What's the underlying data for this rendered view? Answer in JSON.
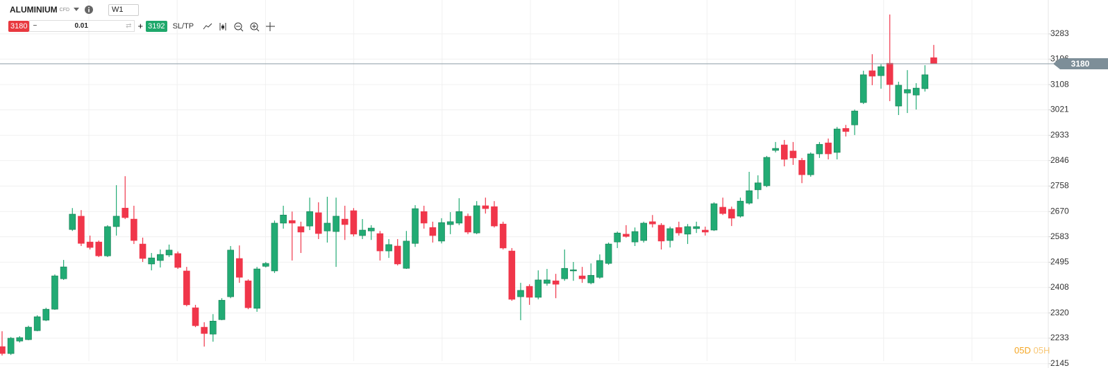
{
  "toolbar": {
    "symbol": "ALUMINIUM",
    "kind": "CFD",
    "timeframe": "W1",
    "sell": "3180",
    "quantity": "0.01",
    "buy": "3192",
    "sltp": "SL/TP"
  },
  "timer": {
    "days": "05D",
    "hours": "05H"
  },
  "chart_data": {
    "type": "candlestick",
    "last_price": 3180,
    "last_price_label": "3180",
    "ylim": [
      2154,
      3400
    ],
    "yticks": [
      3283,
      3196,
      3108,
      3021,
      2933,
      2846,
      2758,
      2670,
      2583,
      2495,
      2408,
      2320,
      2233,
      2145
    ],
    "grid": true,
    "up_color": "#22ab74",
    "down_color": "#f0364a",
    "series": [
      {
        "name": "ALUMINIUM",
        "open": [
          2204,
          2180,
          2223,
          2228,
          2259,
          2295,
          2333,
          2438,
          2608,
          2654,
          2565,
          2565,
          2517,
          2618,
          2682,
          2644,
          2558,
          2489,
          2501,
          2520,
          2525,
          2465,
          2338,
          2271,
          2247,
          2297,
          2376,
          2508,
          2431,
          2336,
          2481,
          2465,
          2630,
          2639,
          2618,
          2620,
          2666,
          2603,
          2601,
          2644,
          2673,
          2587,
          2603,
          2594,
          2534,
          2551,
          2474,
          2560,
          2670,
          2615,
          2568,
          2625,
          2630,
          2654,
          2596,
          2690,
          2687,
          2627,
          2534,
          2376,
          2412,
          2374,
          2422,
          2431,
          2438,
          2465,
          2448,
          2424,
          2443,
          2491,
          2565,
          2592,
          2565,
          2570,
          2635,
          2623,
          2570,
          2615,
          2592,
          2611,
          2606,
          2606,
          2685,
          2678,
          2654,
          2699,
          2745,
          2759,
          2881,
          2900,
          2879,
          2847,
          2797,
          2869,
          2907,
          2874,
          2957,
          2969,
          3046,
          3156,
          3139,
          3182,
          3034,
          3079,
          3072,
          3094,
          3201
        ],
        "high": [
          2257,
          2237,
          2240,
          2276,
          2312,
          2338,
          2453,
          2503,
          2682,
          2675,
          2587,
          2570,
          2623,
          2761,
          2792,
          2690,
          2580,
          2527,
          2539,
          2556,
          2532,
          2479,
          2348,
          2288,
          2316,
          2371,
          2551,
          2553,
          2436,
          2479,
          2496,
          2639,
          2690,
          2670,
          2635,
          2718,
          2702,
          2721,
          2718,
          2690,
          2682,
          2644,
          2623,
          2603,
          2575,
          2575,
          2603,
          2692,
          2690,
          2635,
          2647,
          2668,
          2716,
          2663,
          2706,
          2718,
          2706,
          2635,
          2544,
          2424,
          2419,
          2467,
          2472,
          2455,
          2539,
          2496,
          2479,
          2491,
          2522,
          2563,
          2601,
          2623,
          2615,
          2635,
          2658,
          2630,
          2618,
          2635,
          2627,
          2635,
          2618,
          2702,
          2718,
          2687,
          2718,
          2807,
          2795,
          2862,
          2910,
          2917,
          2910,
          2855,
          2874,
          2910,
          2922,
          2962,
          2969,
          3022,
          3156,
          3213,
          3178,
          3350,
          3118,
          3158,
          3113,
          3175,
          3245
        ],
        "low": [
          2173,
          2175,
          2218,
          2226,
          2257,
          2292,
          2331,
          2434,
          2603,
          2551,
          2539,
          2513,
          2513,
          2587,
          2644,
          2558,
          2496,
          2467,
          2477,
          2513,
          2472,
          2343,
          2271,
          2204,
          2221,
          2295,
          2371,
          2424,
          2333,
          2324,
          2477,
          2458,
          2611,
          2501,
          2527,
          2606,
          2575,
          2563,
          2479,
          2572,
          2584,
          2575,
          2572,
          2501,
          2510,
          2484,
          2472,
          2548,
          2611,
          2563,
          2560,
          2592,
          2623,
          2592,
          2592,
          2663,
          2615,
          2539,
          2362,
          2295,
          2348,
          2367,
          2414,
          2371,
          2431,
          2431,
          2424,
          2419,
          2438,
          2486,
          2544,
          2580,
          2551,
          2563,
          2615,
          2539,
          2546,
          2587,
          2558,
          2596,
          2587,
          2603,
          2658,
          2620,
          2649,
          2694,
          2713,
          2754,
          2874,
          2826,
          2831,
          2768,
          2790,
          2855,
          2850,
          2850,
          2929,
          2934,
          3041,
          3106,
          3094,
          3051,
          3003,
          3010,
          3022,
          3084,
          3180
        ],
        "close": [
          2180,
          2233,
          2235,
          2271,
          2307,
          2333,
          2448,
          2479,
          2661,
          2560,
          2546,
          2517,
          2618,
          2654,
          2649,
          2570,
          2508,
          2510,
          2522,
          2537,
          2477,
          2348,
          2276,
          2249,
          2292,
          2364,
          2537,
          2443,
          2338,
          2472,
          2491,
          2630,
          2658,
          2630,
          2599,
          2670,
          2594,
          2630,
          2654,
          2625,
          2592,
          2606,
          2613,
          2534,
          2556,
          2489,
          2568,
          2680,
          2630,
          2587,
          2632,
          2635,
          2670,
          2599,
          2690,
          2680,
          2620,
          2544,
          2367,
          2398,
          2374,
          2434,
          2434,
          2419,
          2474,
          2469,
          2438,
          2450,
          2501,
          2558,
          2596,
          2584,
          2601,
          2630,
          2627,
          2568,
          2611,
          2596,
          2618,
          2618,
          2599,
          2697,
          2663,
          2647,
          2706,
          2742,
          2769,
          2857,
          2888,
          2850,
          2855,
          2797,
          2869,
          2902,
          2869,
          2955,
          2946,
          3017,
          3142,
          3137,
          3170,
          3108,
          3106,
          3091,
          3096,
          3142,
          3180
        ]
      }
    ]
  }
}
